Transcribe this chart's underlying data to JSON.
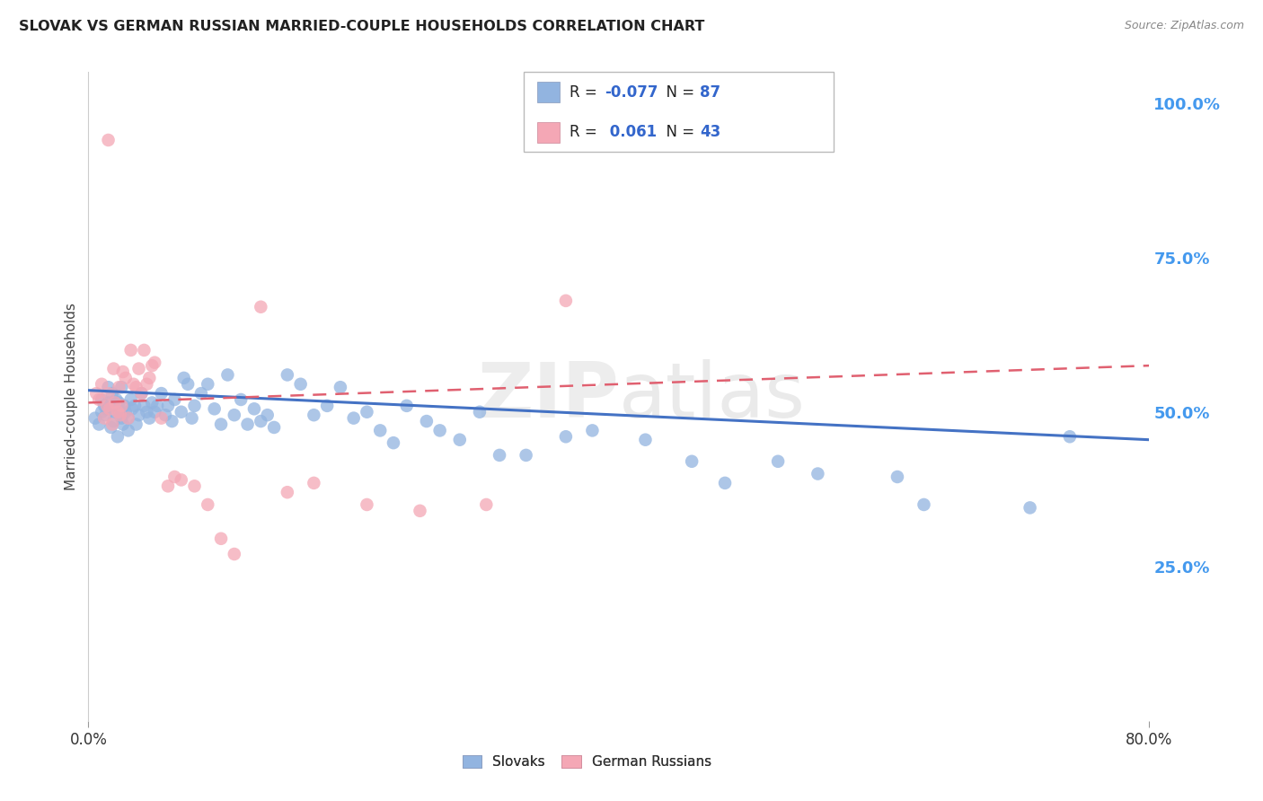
{
  "title": "SLOVAK VS GERMAN RUSSIAN MARRIED-COUPLE HOUSEHOLDS CORRELATION CHART",
  "source": "Source: ZipAtlas.com",
  "ylabel": "Married-couple Households",
  "right_yticks": [
    "100.0%",
    "75.0%",
    "50.0%",
    "25.0%"
  ],
  "right_ytick_vals": [
    1.0,
    0.75,
    0.5,
    0.25
  ],
  "xlim": [
    0.0,
    0.8
  ],
  "ylim": [
    0.0,
    1.05
  ],
  "legend_blue_label": "Slovaks",
  "legend_pink_label": "German Russians",
  "R_blue": -0.077,
  "N_blue": 87,
  "R_pink": 0.061,
  "N_pink": 43,
  "blue_color": "#92B4E0",
  "pink_color": "#F4A7B5",
  "blue_line_color": "#4472C4",
  "pink_line_color": "#E06070",
  "blue_line_y0": 0.535,
  "blue_line_y1": 0.455,
  "pink_line_y0": 0.515,
  "pink_line_y1": 0.575,
  "blue_x": [
    0.005,
    0.008,
    0.01,
    0.01,
    0.012,
    0.013,
    0.014,
    0.015,
    0.015,
    0.017,
    0.018,
    0.019,
    0.02,
    0.02,
    0.021,
    0.022,
    0.022,
    0.023,
    0.024,
    0.025,
    0.025,
    0.026,
    0.027,
    0.028,
    0.03,
    0.03,
    0.032,
    0.033,
    0.035,
    0.036,
    0.038,
    0.04,
    0.042,
    0.044,
    0.046,
    0.048,
    0.05,
    0.052,
    0.055,
    0.058,
    0.06,
    0.063,
    0.065,
    0.07,
    0.072,
    0.075,
    0.078,
    0.08,
    0.085,
    0.09,
    0.095,
    0.1,
    0.105,
    0.11,
    0.115,
    0.12,
    0.125,
    0.13,
    0.135,
    0.14,
    0.15,
    0.16,
    0.17,
    0.18,
    0.19,
    0.2,
    0.21,
    0.22,
    0.23,
    0.24,
    0.255,
    0.265,
    0.28,
    0.295,
    0.31,
    0.33,
    0.36,
    0.38,
    0.42,
    0.455,
    0.48,
    0.52,
    0.55,
    0.61,
    0.63,
    0.71,
    0.74
  ],
  "blue_y": [
    0.49,
    0.48,
    0.5,
    0.52,
    0.51,
    0.495,
    0.505,
    0.515,
    0.54,
    0.475,
    0.53,
    0.485,
    0.5,
    0.51,
    0.52,
    0.46,
    0.505,
    0.515,
    0.5,
    0.49,
    0.54,
    0.48,
    0.51,
    0.5,
    0.47,
    0.49,
    0.52,
    0.505,
    0.51,
    0.48,
    0.495,
    0.53,
    0.51,
    0.5,
    0.49,
    0.515,
    0.5,
    0.51,
    0.53,
    0.495,
    0.51,
    0.485,
    0.52,
    0.5,
    0.555,
    0.545,
    0.49,
    0.51,
    0.53,
    0.545,
    0.505,
    0.48,
    0.56,
    0.495,
    0.52,
    0.48,
    0.505,
    0.485,
    0.495,
    0.475,
    0.56,
    0.545,
    0.495,
    0.51,
    0.54,
    0.49,
    0.5,
    0.47,
    0.45,
    0.51,
    0.485,
    0.47,
    0.455,
    0.5,
    0.43,
    0.43,
    0.46,
    0.47,
    0.455,
    0.42,
    0.385,
    0.42,
    0.4,
    0.395,
    0.35,
    0.345,
    0.46
  ],
  "pink_x": [
    0.006,
    0.008,
    0.01,
    0.012,
    0.014,
    0.015,
    0.016,
    0.018,
    0.019,
    0.02,
    0.022,
    0.023,
    0.024,
    0.025,
    0.026,
    0.028,
    0.03,
    0.032,
    0.034,
    0.036,
    0.038,
    0.04,
    0.042,
    0.044,
    0.046,
    0.048,
    0.05,
    0.055,
    0.06,
    0.065,
    0.07,
    0.08,
    0.09,
    0.1,
    0.11,
    0.13,
    0.15,
    0.17,
    0.21,
    0.25,
    0.3,
    0.36,
    0.015
  ],
  "pink_y": [
    0.53,
    0.52,
    0.545,
    0.49,
    0.51,
    0.53,
    0.505,
    0.48,
    0.57,
    0.515,
    0.5,
    0.54,
    0.495,
    0.51,
    0.565,
    0.555,
    0.49,
    0.6,
    0.545,
    0.54,
    0.57,
    0.53,
    0.6,
    0.545,
    0.555,
    0.575,
    0.58,
    0.49,
    0.38,
    0.395,
    0.39,
    0.38,
    0.35,
    0.295,
    0.27,
    0.67,
    0.37,
    0.385,
    0.35,
    0.34,
    0.35,
    0.68,
    0.94
  ]
}
